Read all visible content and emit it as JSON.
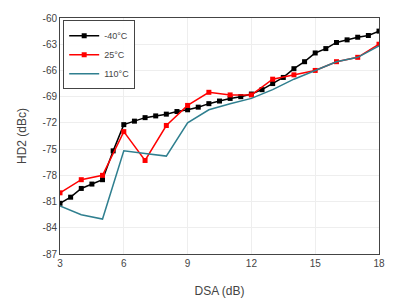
{
  "chart_data": {
    "type": "line",
    "xlabel": "DSA (dB)",
    "ylabel": "HD2 (dBc)",
    "xlim": [
      3,
      18
    ],
    "ylim": [
      -87,
      -60
    ],
    "xticks": [
      3,
      6,
      9,
      12,
      15,
      18
    ],
    "yticks": [
      -87,
      -84,
      -81,
      -78,
      -75,
      -72,
      -69,
      -66,
      -63,
      -60
    ],
    "grid": true,
    "legend": "upper left",
    "series": [
      {
        "name": "-40°C",
        "color": "#000000",
        "marker": "square",
        "x": [
          3,
          3.5,
          4,
          4.5,
          5,
          5.5,
          6,
          6.5,
          7,
          7.5,
          8,
          8.5,
          9,
          9.5,
          10,
          10.5,
          11,
          11.5,
          12,
          12.5,
          13,
          13.5,
          14,
          14.5,
          15,
          15.5,
          16,
          16.5,
          17,
          17.5,
          18
        ],
        "values": [
          -81.2,
          -80.5,
          -79.5,
          -79,
          -78.5,
          -75.2,
          -72.2,
          -71.8,
          -71.4,
          -71.2,
          -71,
          -70.7,
          -70.5,
          -70.2,
          -69.8,
          -69.5,
          -69.2,
          -69,
          -68.7,
          -68.2,
          -67.5,
          -66.8,
          -65.8,
          -65,
          -64,
          -63.5,
          -62.8,
          -62.5,
          -62.2,
          -62,
          -61.5
        ]
      },
      {
        "name": "25°C",
        "color": "#ff0000",
        "marker": "square",
        "x": [
          3,
          4,
          5,
          6,
          7,
          8,
          9,
          10,
          11,
          12,
          13,
          14,
          15,
          16,
          17,
          18
        ],
        "values": [
          -80,
          -78.5,
          -78,
          -73,
          -76.3,
          -72.3,
          -70,
          -68.5,
          -68.8,
          -68.8,
          -67,
          -66.5,
          -66,
          -65,
          -64.5,
          -63
        ]
      },
      {
        "name": "110°C",
        "color": "#2f7f8f",
        "x": [
          3,
          4,
          5,
          6,
          7,
          8,
          9,
          10,
          11,
          12,
          13,
          14,
          15,
          16,
          17,
          18
        ],
        "values": [
          -81.5,
          -82.5,
          -83,
          -75.2,
          -75.5,
          -75.8,
          -72,
          -70.5,
          -69.8,
          -69.2,
          -68.2,
          -67,
          -66,
          -65,
          -64.5,
          -63.2
        ]
      }
    ]
  }
}
